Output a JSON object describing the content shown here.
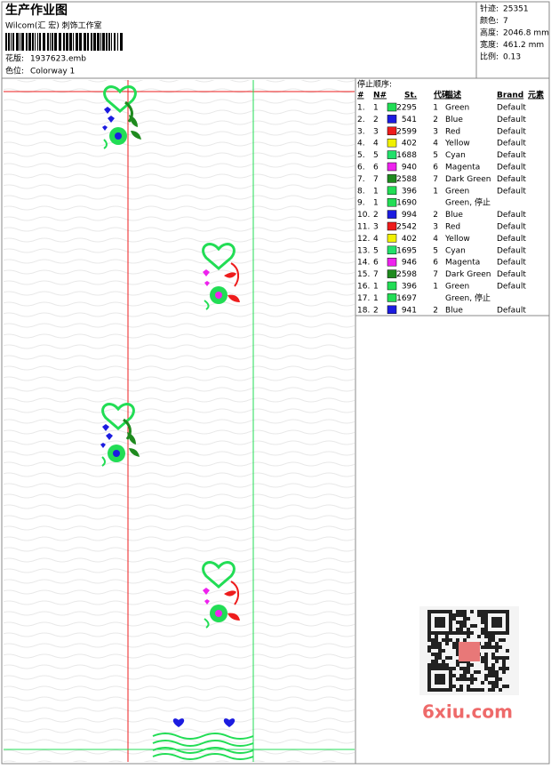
{
  "header": {
    "title": "生产作业图",
    "studio": "Wilcom(汇 宏) 刺饰工作室",
    "design_label": "花版:",
    "design_file": "1937623.emb",
    "colorway_label": "色位:",
    "colorway": "Colorway 1"
  },
  "stats": [
    {
      "label": "针迹:",
      "value": "25351"
    },
    {
      "label": "颜色:",
      "value": "7"
    },
    {
      "label": "高度:",
      "value": "2046.8 mm"
    },
    {
      "label": "宽度:",
      "value": "461.2 mm"
    },
    {
      "label": "比例:",
      "value": "0.13"
    }
  ],
  "table": {
    "caption": "停止顺序:",
    "columns": [
      "#",
      "N#",
      "St.",
      "代码",
      "描述",
      "Brand",
      "元素"
    ],
    "rows": [
      {
        "num": "1.",
        "needle": "1",
        "color": "#22dd55",
        "stitches": "2295",
        "code": "1",
        "desc": "Green",
        "brand": "Default"
      },
      {
        "num": "2.",
        "needle": "2",
        "color": "#1c1ce0",
        "stitches": "541",
        "code": "2",
        "desc": "Blue",
        "brand": "Default"
      },
      {
        "num": "3.",
        "needle": "3",
        "color": "#ee1c1c",
        "stitches": "2599",
        "code": "3",
        "desc": "Red",
        "brand": "Default"
      },
      {
        "num": "4.",
        "needle": "4",
        "color": "#f0f000",
        "stitches": "402",
        "code": "4",
        "desc": "Yellow",
        "brand": "Default"
      },
      {
        "num": "5.",
        "needle": "5",
        "color": "#22e06a",
        "stitches": "1688",
        "code": "5",
        "desc": "Cyan",
        "brand": "Default"
      },
      {
        "num": "6.",
        "needle": "6",
        "color": "#ee22ee",
        "stitches": "940",
        "code": "6",
        "desc": "Magenta",
        "brand": "Default"
      },
      {
        "num": "7.",
        "needle": "7",
        "color": "#1e8a1e",
        "stitches": "2588",
        "code": "7",
        "desc": "Dark Green",
        "brand": "Default"
      },
      {
        "num": "8.",
        "needle": "1",
        "color": "#22dd55",
        "stitches": "396",
        "code": "1",
        "desc": "Green",
        "brand": "Default"
      },
      {
        "num": "9.",
        "needle": "1",
        "color": "#22dd55",
        "stitches": "1690",
        "desc": "Green, 停止"
      },
      {
        "num": "10.",
        "needle": "2",
        "color": "#1c1ce0",
        "stitches": "994",
        "code": "2",
        "desc": "Blue",
        "brand": "Default"
      },
      {
        "num": "11.",
        "needle": "3",
        "color": "#ee1c1c",
        "stitches": "2542",
        "code": "3",
        "desc": "Red",
        "brand": "Default"
      },
      {
        "num": "12.",
        "needle": "4",
        "color": "#f0f000",
        "stitches": "402",
        "code": "4",
        "desc": "Yellow",
        "brand": "Default"
      },
      {
        "num": "13.",
        "needle": "5",
        "color": "#22e06a",
        "stitches": "1695",
        "code": "5",
        "desc": "Cyan",
        "brand": "Default"
      },
      {
        "num": "14.",
        "needle": "6",
        "color": "#ee22ee",
        "stitches": "946",
        "code": "6",
        "desc": "Magenta",
        "brand": "Default"
      },
      {
        "num": "15.",
        "needle": "7",
        "color": "#1e8a1e",
        "stitches": "2598",
        "code": "7",
        "desc": "Dark Green",
        "brand": "Default"
      },
      {
        "num": "16.",
        "needle": "1",
        "color": "#22dd55",
        "stitches": "396",
        "code": "1",
        "desc": "Green",
        "brand": "Default"
      },
      {
        "num": "17.",
        "needle": "1",
        "color": "#22dd55",
        "stitches": "1697",
        "desc": "Green, 停止"
      },
      {
        "num": "18.",
        "needle": "2",
        "color": "#1c1ce0",
        "stitches": "941",
        "code": "2",
        "desc": "Blue",
        "brand": "Default"
      }
    ]
  },
  "watermark": "6xiu.com"
}
